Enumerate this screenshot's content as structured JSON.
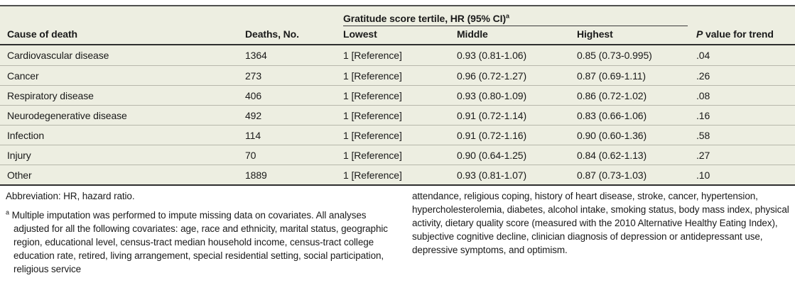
{
  "table": {
    "spanner": {
      "label": "Gratitude score tertile, HR (95% CI)",
      "sup": "a"
    },
    "columns": {
      "cause": "Cause of death",
      "deaths": "Deaths, No.",
      "lowest": "Lowest",
      "middle": "Middle",
      "highest": "Highest",
      "p_italic": "P",
      "p_rest": " value for trend"
    },
    "rows": [
      {
        "cause": "Cardiovascular disease",
        "deaths": "1364",
        "lowest": "1 [Reference]",
        "middle": "0.93 (0.81-1.06)",
        "highest": "0.85 (0.73-0.995)",
        "p": ".04"
      },
      {
        "cause": "Cancer",
        "deaths": "273",
        "lowest": "1 [Reference]",
        "middle": "0.96 (0.72-1.27)",
        "highest": "0.87 (0.69-1.11)",
        "p": ".26"
      },
      {
        "cause": "Respiratory disease",
        "deaths": "406",
        "lowest": "1 [Reference]",
        "middle": "0.93 (0.80-1.09)",
        "highest": "0.86 (0.72-1.02)",
        "p": ".08"
      },
      {
        "cause": "Neurodegenerative disease",
        "deaths": "492",
        "lowest": "1 [Reference]",
        "middle": "0.91 (0.72-1.14)",
        "highest": "0.83 (0.66-1.06)",
        "p": ".16"
      },
      {
        "cause": "Infection",
        "deaths": "114",
        "lowest": "1 [Reference]",
        "middle": "0.91 (0.72-1.16)",
        "highest": "0.90 (0.60-1.36)",
        "p": ".58"
      },
      {
        "cause": "Injury",
        "deaths": "70",
        "lowest": "1 [Reference]",
        "middle": "0.90 (0.64-1.25)",
        "highest": "0.84 (0.62-1.13)",
        "p": ".27"
      },
      {
        "cause": "Other",
        "deaths": "1889",
        "lowest": "1 [Reference]",
        "middle": "0.93 (0.81-1.07)",
        "highest": "0.87 (0.73-1.03)",
        "p": ".10"
      }
    ]
  },
  "footnotes": {
    "abbreviation": "Abbreviation: HR, hazard ratio.",
    "marker": "a",
    "left_text": "Multiple imputation was performed to impute missing data on covariates. All analyses adjusted for all the following covariates: age, race and ethnicity, marital status, geographic region, educational level, census-tract median household income, census-tract college education rate, retired, living arrangement, special residential setting, social participation, religious service",
    "right_text": "attendance, religious coping, history of heart disease, stroke, cancer, hypertension, hypercholesterolemia, diabetes, alcohol intake, smoking status, body mass index, physical activity, dietary quality score (measured with the 2010 Alternative Healthy Eating Index), subjective cognitive decline, clinician diagnosis of depression or antidepressant use, depressive symptoms, and optimism."
  },
  "colors": {
    "table_bg": "#EDEEE1",
    "sep": "#b7b7ab",
    "rule_dark": "#2e2e2e",
    "rule_top": "#4f4f4f",
    "text": "#1a1a1a"
  }
}
